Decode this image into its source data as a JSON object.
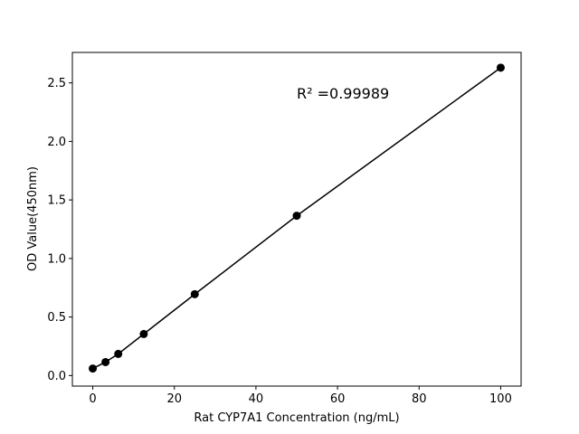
{
  "chart_data": {
    "type": "line",
    "xlabel": "Rat CYP7A1 Concentration (ng/mL)",
    "ylabel": "OD Value(450nm)",
    "annotation": "R² =0.99989",
    "x": [
      0,
      3.125,
      6.25,
      12.5,
      25,
      50,
      100
    ],
    "series": [
      {
        "color": "#000000",
        "values": [
          0.06,
          0.115,
          0.185,
          0.355,
          0.695,
          1.365,
          2.63
        ]
      }
    ],
    "xlim": [
      -5,
      105
    ],
    "ylim": [
      -0.09,
      2.76
    ],
    "xticks": [
      0,
      20,
      40,
      60,
      80,
      100
    ],
    "yticks": [
      {
        "value": 0,
        "label": "0.0"
      },
      0.5,
      {
        "value": 1,
        "label": "1.0"
      },
      1.5,
      {
        "value": 2,
        "label": "2.0"
      },
      2.5
    ]
  }
}
